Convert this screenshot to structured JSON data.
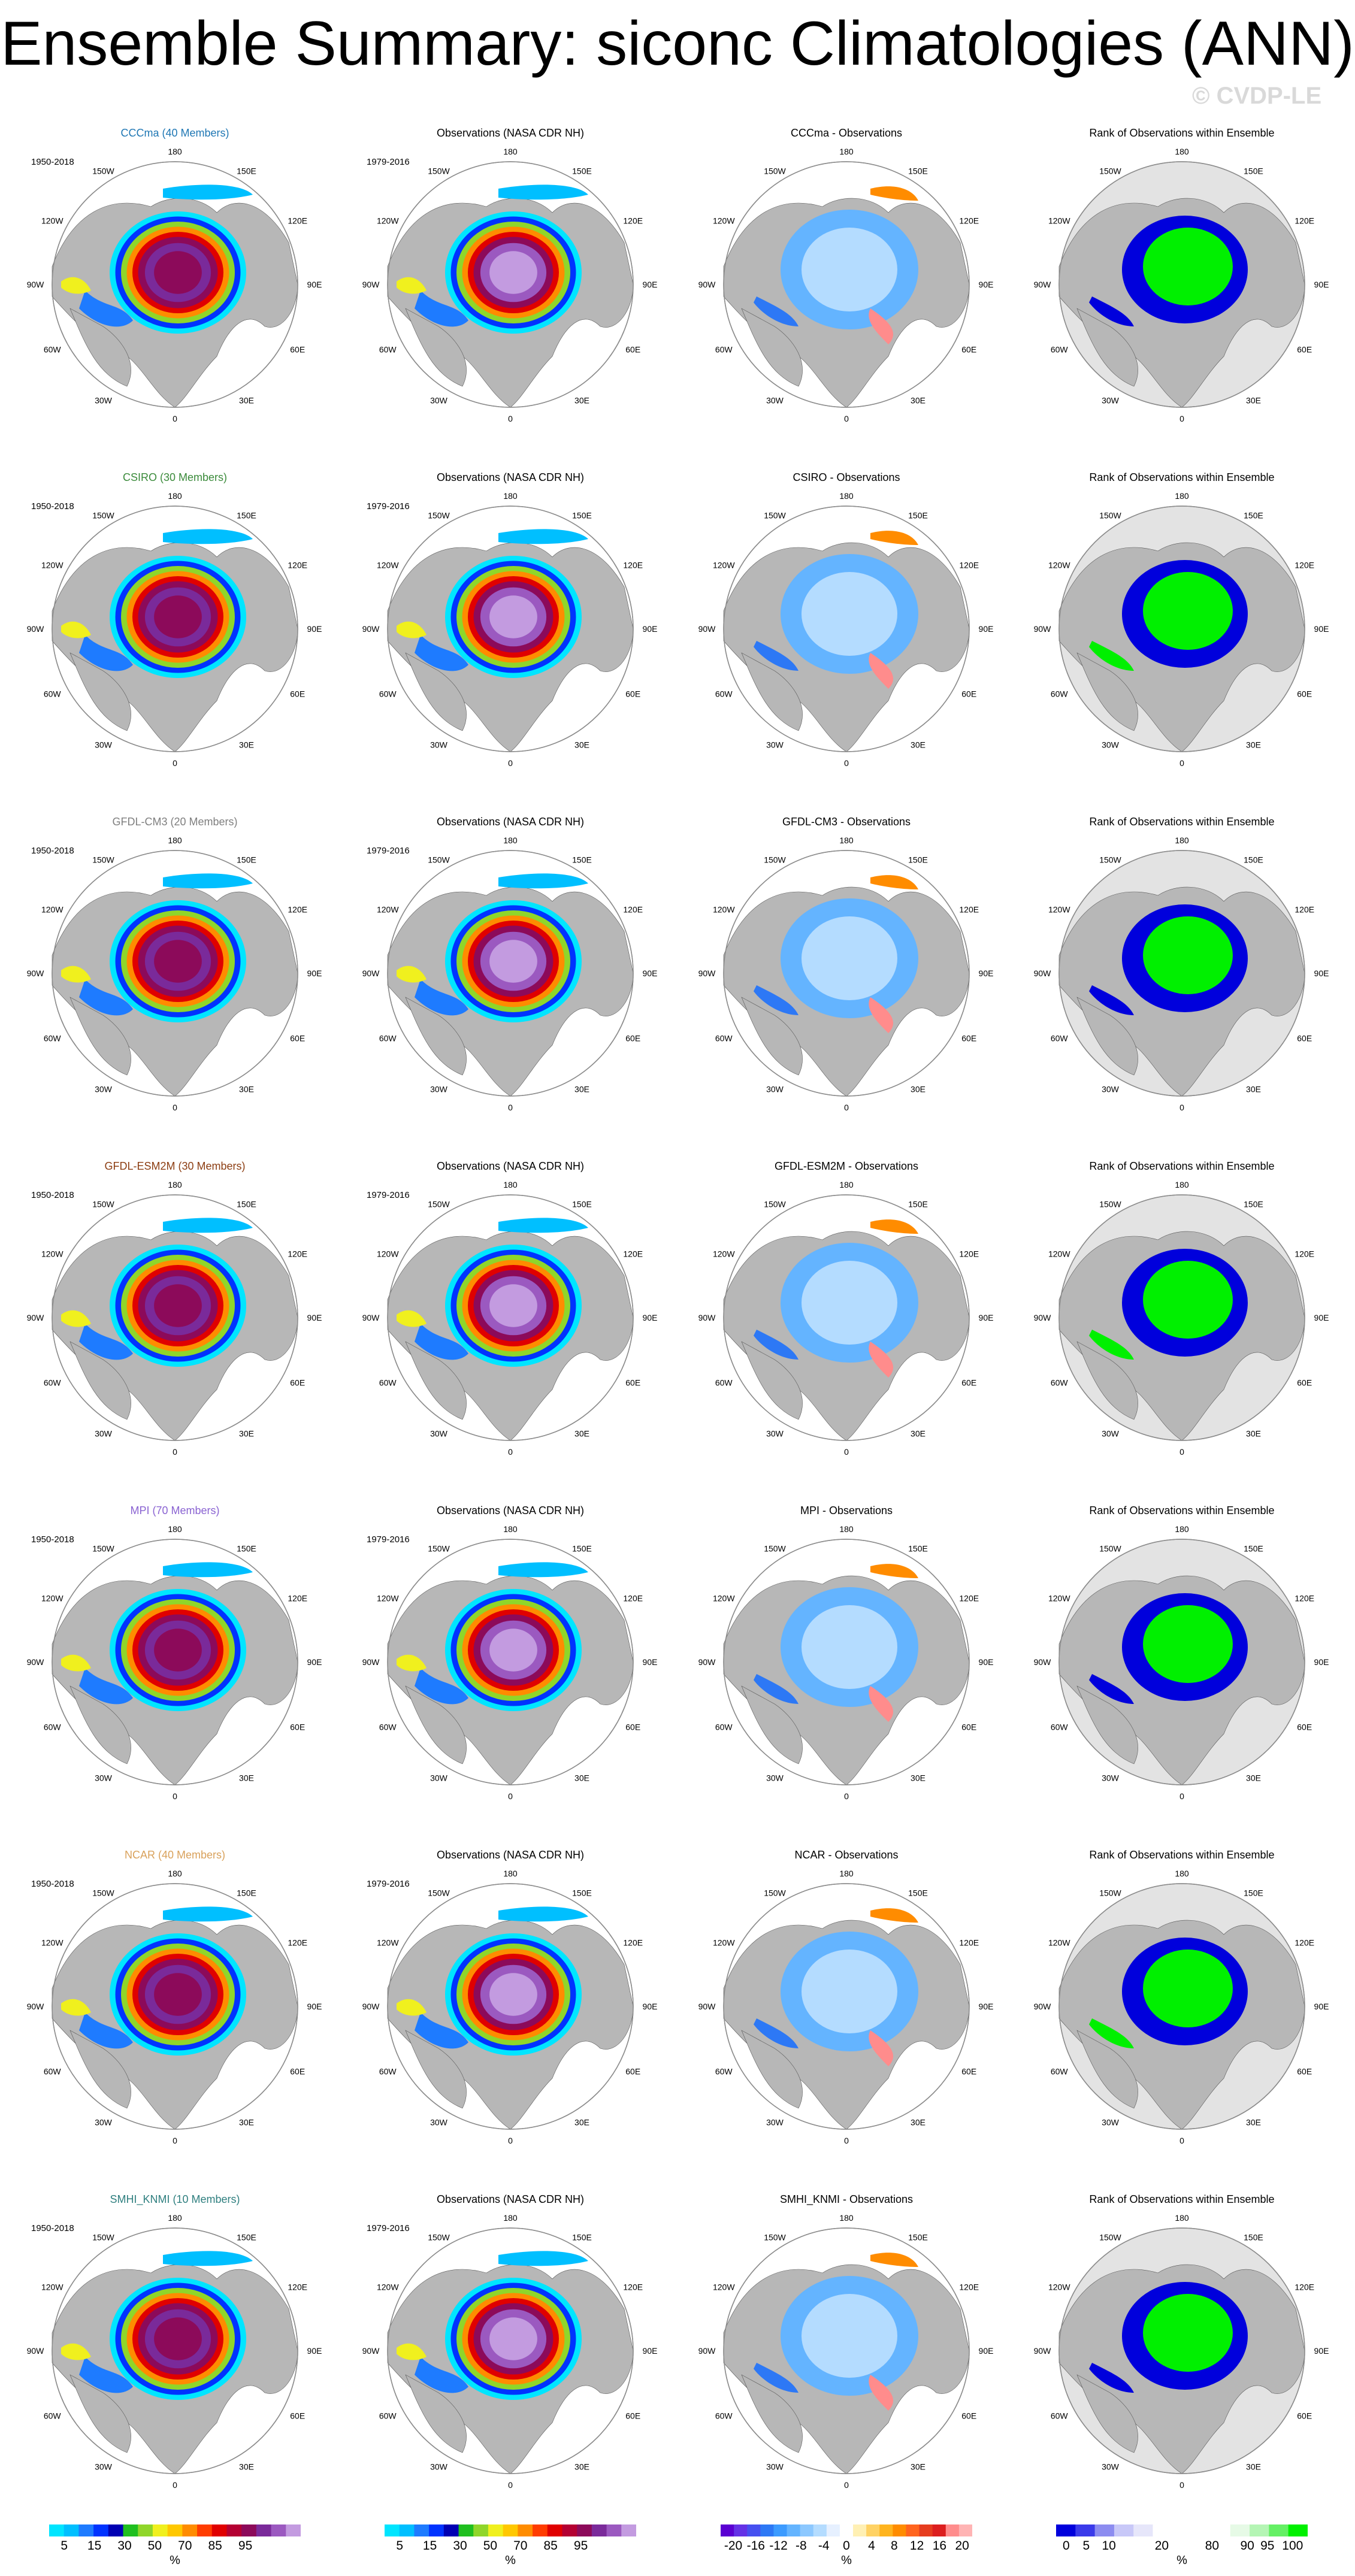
{
  "title": "Ensemble Summary: siconc Climatologies (ANN)",
  "watermark": "© CVDP-LE",
  "period_model": "1950-2018",
  "period_obs": "1979-2016",
  "obs_title": "Observations (NASA CDR NH)",
  "rank_title": "Rank of Observations within Ensemble",
  "diff_suffix": " - Observations",
  "longitude_labels": {
    "top": "180",
    "bottom": "0",
    "upper_left": "150W",
    "upper_right": "150E",
    "left_upper": "120W",
    "right_upper": "120E",
    "left": "90W",
    "right": "90E",
    "left_lower": "60W",
    "right_lower": "60E",
    "lower_left": "30W",
    "lower_right": "30E"
  },
  "models": [
    {
      "name": "CCCma",
      "label": "CCCma (40 Members)",
      "color": "#1f77b4"
    },
    {
      "name": "CSIRO",
      "label": "CSIRO (30 Members)",
      "color": "#3a8a3a"
    },
    {
      "name": "GFDL-CM3",
      "label": "GFDL-CM3 (20 Members)",
      "color": "#7f7f7f"
    },
    {
      "name": "GFDL-ESM2M",
      "label": "GFDL-ESM2M (30 Members)",
      "color": "#8c3d12"
    },
    {
      "name": "MPI",
      "label": "MPI (70 Members)",
      "color": "#8a63d2"
    },
    {
      "name": "NCAR",
      "label": "NCAR (40 Members)",
      "color": "#d9a15b"
    },
    {
      "name": "SMHI_KNMI",
      "label": "SMHI_KNMI (10 Members)",
      "color": "#2f7f7f"
    }
  ],
  "colorbars": {
    "climatology": {
      "unit": "%",
      "ticks": [
        "5",
        "15",
        "30",
        "50",
        "70",
        "85",
        "95"
      ],
      "colors": [
        "#00e5ff",
        "#00bfff",
        "#1e7bff",
        "#0033ff",
        "#0000b3",
        "#1fbf1f",
        "#8fd62a",
        "#f0f01e",
        "#ffc800",
        "#ff8c00",
        "#ff3c00",
        "#e00000",
        "#b40032",
        "#8c0a5a",
        "#7a2a9a",
        "#9b59c0",
        "#c39be0"
      ]
    },
    "difference": {
      "unit": "%",
      "ticks": [
        "-20",
        "-16",
        "-12",
        "-8",
        "-4",
        "0",
        "4",
        "8",
        "12",
        "16",
        "20"
      ],
      "colors": [
        "#5a00d2",
        "#6432e6",
        "#4650f0",
        "#2d78f5",
        "#3c9bff",
        "#64b4ff",
        "#8cc8ff",
        "#b4dcff",
        "#e6f0ff",
        "#ffffff",
        "#fff0b4",
        "#ffd264",
        "#ffb41e",
        "#ff8c00",
        "#ff641e",
        "#e63c1e",
        "#dc1e1e",
        "#ff8c8c",
        "#ffb4b4"
      ]
    },
    "rank": {
      "unit": "%",
      "ticks": [
        "0",
        "5",
        "10",
        "20",
        "80",
        "90",
        "95",
        "100"
      ],
      "colors": [
        "#0000dc",
        "#3a3aea",
        "#8c8cf0",
        "#c8c8f8",
        "#e6e6fa",
        "#ffffff",
        "#ffffff",
        "#ffffff",
        "#ffffff",
        "#e6fae6",
        "#b4f5b4",
        "#64f064",
        "#00f000"
      ]
    }
  }
}
